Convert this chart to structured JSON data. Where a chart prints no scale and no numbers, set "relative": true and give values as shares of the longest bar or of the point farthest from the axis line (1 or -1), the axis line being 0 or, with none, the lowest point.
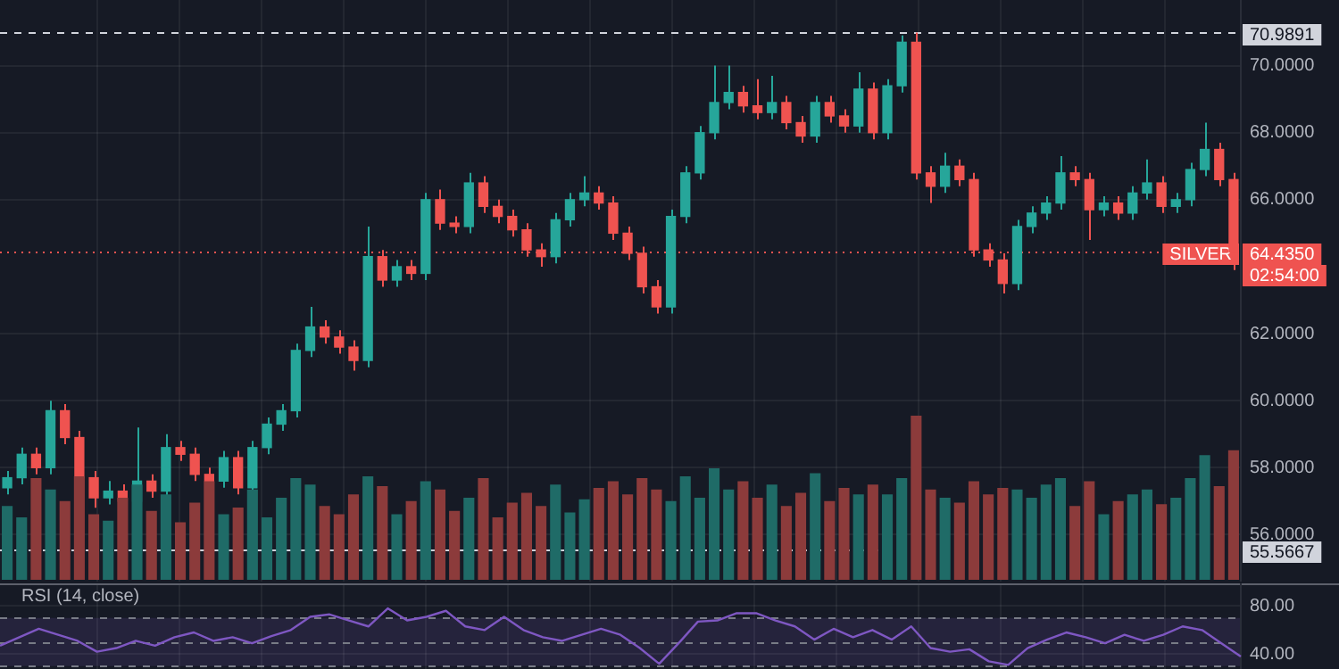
{
  "chart_data": [
    {
      "type": "candlestick",
      "categories": [
        null,
        null,
        null,
        null,
        null,
        null,
        null,
        null,
        null,
        null,
        null,
        null,
        null,
        null,
        null,
        null,
        null,
        null,
        null,
        null,
        null,
        null,
        null,
        null,
        null,
        null,
        null,
        null,
        null,
        null,
        null,
        null,
        null,
        null,
        null,
        null,
        null,
        null,
        null,
        null,
        null,
        null,
        null,
        null,
        null,
        null,
        null,
        null,
        null,
        null,
        null,
        null,
        null,
        null,
        null,
        null,
        null,
        null,
        null,
        null,
        null,
        null,
        null,
        null,
        null,
        null,
        null,
        null,
        null,
        null,
        null,
        null,
        null,
        null,
        null,
        null,
        null,
        null,
        null,
        null,
        null,
        null,
        null,
        null,
        null,
        null
      ],
      "ohlc": [
        [
          57.4,
          57.9,
          57.2,
          57.7
        ],
        [
          57.7,
          58.6,
          57.5,
          58.4
        ],
        [
          58.4,
          58.6,
          57.8,
          58.0
        ],
        [
          58.0,
          60.0,
          57.8,
          59.7
        ],
        [
          59.7,
          59.9,
          58.7,
          58.9
        ],
        [
          58.9,
          59.1,
          57.5,
          57.7
        ],
        [
          57.7,
          57.9,
          56.8,
          57.1
        ],
        [
          57.1,
          57.6,
          56.9,
          57.3
        ],
        [
          57.3,
          57.5,
          56.8,
          57.0
        ],
        [
          57.0,
          59.2,
          56.8,
          57.6
        ],
        [
          57.6,
          57.8,
          57.1,
          57.3
        ],
        [
          57.3,
          59.0,
          57.1,
          58.6
        ],
        [
          58.6,
          58.8,
          58.2,
          58.4
        ],
        [
          58.4,
          58.6,
          57.6,
          57.8
        ],
        [
          57.8,
          58.0,
          57.4,
          57.6
        ],
        [
          57.6,
          58.5,
          57.4,
          58.3
        ],
        [
          58.3,
          58.5,
          57.2,
          57.4
        ],
        [
          57.4,
          58.8,
          57.2,
          58.6
        ],
        [
          58.6,
          59.5,
          58.4,
          59.3
        ],
        [
          59.3,
          59.9,
          59.1,
          59.7
        ],
        [
          59.7,
          61.7,
          59.5,
          61.5
        ],
        [
          61.5,
          62.8,
          61.3,
          62.2
        ],
        [
          62.2,
          62.4,
          61.7,
          61.9
        ],
        [
          61.9,
          62.1,
          61.4,
          61.6
        ],
        [
          61.6,
          61.8,
          60.9,
          61.2
        ],
        [
          61.2,
          65.2,
          61.0,
          64.3
        ],
        [
          64.3,
          64.5,
          63.4,
          63.6
        ],
        [
          63.6,
          64.2,
          63.4,
          64.0
        ],
        [
          64.0,
          64.2,
          63.6,
          63.8
        ],
        [
          63.8,
          66.2,
          63.6,
          66.0
        ],
        [
          66.0,
          66.3,
          65.1,
          65.3
        ],
        [
          65.3,
          65.5,
          65.0,
          65.2
        ],
        [
          65.2,
          66.8,
          65.0,
          66.5
        ],
        [
          66.5,
          66.7,
          65.6,
          65.8
        ],
        [
          65.8,
          66.0,
          65.3,
          65.5
        ],
        [
          65.5,
          65.7,
          64.9,
          65.1
        ],
        [
          65.1,
          65.3,
          64.3,
          64.5
        ],
        [
          64.5,
          64.7,
          64.0,
          64.3
        ],
        [
          64.3,
          65.6,
          64.1,
          65.4
        ],
        [
          65.4,
          66.2,
          65.2,
          66.0
        ],
        [
          66.0,
          66.7,
          65.8,
          66.2
        ],
        [
          66.2,
          66.4,
          65.7,
          65.9
        ],
        [
          65.9,
          66.1,
          64.8,
          65.0
        ],
        [
          65.0,
          65.2,
          64.2,
          64.4
        ],
        [
          64.4,
          64.6,
          63.2,
          63.4
        ],
        [
          63.4,
          63.6,
          62.6,
          62.8
        ],
        [
          62.8,
          65.7,
          62.6,
          65.5
        ],
        [
          65.5,
          67.0,
          65.3,
          66.8
        ],
        [
          66.8,
          68.2,
          66.6,
          68.0
        ],
        [
          68.0,
          70.0,
          67.8,
          68.9
        ],
        [
          68.9,
          70.0,
          68.7,
          69.2
        ],
        [
          69.2,
          69.4,
          68.6,
          68.8
        ],
        [
          68.8,
          69.6,
          68.4,
          68.6
        ],
        [
          68.6,
          69.7,
          68.4,
          68.9
        ],
        [
          68.9,
          69.1,
          68.1,
          68.3
        ],
        [
          68.3,
          68.5,
          67.7,
          67.9
        ],
        [
          67.9,
          69.1,
          67.7,
          68.9
        ],
        [
          68.9,
          69.1,
          68.3,
          68.5
        ],
        [
          68.5,
          68.7,
          68.0,
          68.2
        ],
        [
          68.2,
          69.8,
          68.0,
          69.3
        ],
        [
          69.3,
          69.5,
          67.8,
          68.0
        ],
        [
          68.0,
          69.6,
          67.8,
          69.4
        ],
        [
          69.4,
          70.9,
          69.2,
          70.7
        ],
        [
          70.7,
          70.9891,
          66.6,
          66.8
        ],
        [
          66.8,
          67.0,
          65.9,
          66.4
        ],
        [
          66.4,
          67.4,
          66.2,
          67.0
        ],
        [
          67.0,
          67.2,
          66.4,
          66.6
        ],
        [
          66.6,
          66.8,
          64.3,
          64.5
        ],
        [
          64.5,
          64.7,
          64.0,
          64.2
        ],
        [
          64.2,
          64.4,
          63.2,
          63.5
        ],
        [
          63.5,
          65.4,
          63.3,
          65.2
        ],
        [
          65.2,
          65.8,
          65.0,
          65.6
        ],
        [
          65.6,
          66.1,
          65.4,
          65.9
        ],
        [
          65.9,
          67.3,
          65.7,
          66.8
        ],
        [
          66.8,
          67.0,
          66.4,
          66.6
        ],
        [
          66.6,
          66.8,
          64.8,
          65.7
        ],
        [
          65.7,
          66.1,
          65.5,
          65.9
        ],
        [
          65.9,
          66.1,
          65.4,
          65.6
        ],
        [
          65.6,
          66.4,
          65.4,
          66.2
        ],
        [
          66.2,
          67.2,
          66.0,
          66.5
        ],
        [
          66.5,
          66.7,
          65.6,
          65.8
        ],
        [
          65.8,
          66.2,
          65.6,
          66.0
        ],
        [
          66.0,
          67.1,
          65.8,
          66.9
        ],
        [
          66.9,
          68.3,
          66.7,
          67.5
        ],
        [
          67.5,
          67.7,
          66.4,
          66.6
        ],
        [
          66.6,
          66.8,
          63.9,
          64.435
        ]
      ],
      "colors": [
        "#26a69a",
        "#26a69a",
        "#ef5350",
        "#26a69a",
        "#ef5350",
        "#ef5350",
        "#ef5350",
        "#26a69a",
        "#ef5350",
        "#26a69a",
        "#ef5350",
        "#26a69a",
        "#ef5350",
        "#ef5350",
        "#ef5350",
        "#26a69a",
        "#ef5350",
        "#26a69a",
        "#26a69a",
        "#26a69a",
        "#26a69a",
        "#26a69a",
        "#ef5350",
        "#ef5350",
        "#ef5350",
        "#26a69a",
        "#ef5350",
        "#26a69a",
        "#ef5350",
        "#26a69a",
        "#ef5350",
        "#ef5350",
        "#26a69a",
        "#ef5350",
        "#ef5350",
        "#ef5350",
        "#ef5350",
        "#ef5350",
        "#26a69a",
        "#26a69a",
        "#26a69a",
        "#ef5350",
        "#ef5350",
        "#ef5350",
        "#ef5350",
        "#ef5350",
        "#26a69a",
        "#26a69a",
        "#26a69a",
        "#26a69a",
        "#26a69a",
        "#ef5350",
        "#ef5350",
        "#26a69a",
        "#ef5350",
        "#ef5350",
        "#26a69a",
        "#ef5350",
        "#ef5350",
        "#26a69a",
        "#ef5350",
        "#26a69a",
        "#26a69a",
        "#ef5350",
        "#ef5350",
        "#26a69a",
        "#ef5350",
        "#ef5350",
        "#ef5350",
        "#ef5350",
        "#26a69a",
        "#26a69a",
        "#26a69a",
        "#26a69a",
        "#ef5350",
        "#ef5350",
        "#26a69a",
        "#ef5350",
        "#26a69a",
        "#26a69a",
        "#ef5350",
        "#26a69a",
        "#26a69a",
        "#26a69a",
        "#ef5350",
        "#ef5350"
      ],
      "ylim": [
        54.6,
        71.96
      ],
      "yticks": [
        {
          "value": 56,
          "label": "56.0000"
        },
        {
          "value": 58,
          "label": "58.0000"
        },
        {
          "value": 60,
          "label": "60.0000"
        },
        {
          "value": 62,
          "label": "62.0000"
        },
        {
          "value": 66,
          "label": "66.0000"
        },
        {
          "value": 68,
          "label": "68.0000"
        },
        {
          "value": 70,
          "label": "70.0000"
        }
      ],
      "ref_lines": [
        {
          "axis": "y",
          "value": 70.9891,
          "label": "70.9891",
          "color": "#d1d4dc",
          "line_style": "dashed"
        },
        {
          "axis": "y",
          "value": 55.5667,
          "label": "55.5667",
          "color": "#d1d4dc",
          "line_style": "dashed"
        },
        {
          "axis": "y",
          "value": 64.435,
          "label": "64.4350",
          "color": "#ef5350",
          "line_style": "dotted"
        }
      ],
      "annotations": [
        "SILVER",
        "02:54:00"
      ],
      "grid": true,
      "tick_labels": "y"
    },
    {
      "type": "bar",
      "relative": true,
      "categories": [
        null,
        null,
        null,
        null,
        null,
        null,
        null,
        null,
        null,
        null,
        null,
        null,
        null,
        null,
        null,
        null,
        null,
        null,
        null,
        null,
        null,
        null,
        null,
        null,
        null,
        null,
        null,
        null,
        null,
        null,
        null,
        null,
        null,
        null,
        null,
        null,
        null,
        null,
        null,
        null,
        null,
        null,
        null,
        null,
        null,
        null,
        null,
        null,
        null,
        null,
        null,
        null,
        null,
        null,
        null,
        null,
        null,
        null,
        null,
        null,
        null,
        null,
        null,
        null,
        null,
        null,
        null,
        null,
        null,
        null,
        null,
        null,
        null,
        null,
        null,
        null,
        null,
        null,
        null,
        null,
        null,
        null,
        null,
        null,
        null,
        null
      ],
      "values": [
        0.45,
        0.38,
        0.62,
        0.55,
        0.48,
        0.63,
        0.4,
        0.36,
        0.5,
        0.58,
        0.42,
        0.52,
        0.35,
        0.47,
        0.6,
        0.4,
        0.44,
        0.55,
        0.38,
        0.5,
        0.62,
        0.58,
        0.45,
        0.4,
        0.52,
        0.63,
        0.57,
        0.4,
        0.48,
        0.6,
        0.55,
        0.42,
        0.5,
        0.62,
        0.38,
        0.47,
        0.53,
        0.45,
        0.58,
        0.41,
        0.49,
        0.56,
        0.6,
        0.52,
        0.62,
        0.55,
        0.48,
        0.63,
        0.5,
        0.68,
        0.55,
        0.6,
        0.5,
        0.58,
        0.45,
        0.53,
        0.65,
        0.48,
        0.56,
        0.52,
        0.58,
        0.52,
        0.62,
        1,
        0.55,
        0.5,
        0.47,
        0.6,
        0.52,
        0.56,
        0.55,
        0.5,
        0.58,
        0.62,
        0.45,
        0.6,
        0.4,
        0.48,
        0.52,
        0.55,
        0.46,
        0.5,
        0.62,
        0.76,
        0.57,
        0.79
      ],
      "colors": [
        "#1f6b67",
        "#1f6b67",
        "#8c3b3b",
        "#1f6b67",
        "#8c3b3b",
        "#8c3b3b",
        "#8c3b3b",
        "#1f6b67",
        "#8c3b3b",
        "#1f6b67",
        "#8c3b3b",
        "#1f6b67",
        "#8c3b3b",
        "#8c3b3b",
        "#8c3b3b",
        "#1f6b67",
        "#8c3b3b",
        "#1f6b67",
        "#1f6b67",
        "#1f6b67",
        "#1f6b67",
        "#1f6b67",
        "#8c3b3b",
        "#8c3b3b",
        "#8c3b3b",
        "#1f6b67",
        "#8c3b3b",
        "#1f6b67",
        "#8c3b3b",
        "#1f6b67",
        "#8c3b3b",
        "#8c3b3b",
        "#1f6b67",
        "#8c3b3b",
        "#8c3b3b",
        "#8c3b3b",
        "#8c3b3b",
        "#8c3b3b",
        "#1f6b67",
        "#1f6b67",
        "#1f6b67",
        "#8c3b3b",
        "#8c3b3b",
        "#8c3b3b",
        "#8c3b3b",
        "#8c3b3b",
        "#1f6b67",
        "#1f6b67",
        "#1f6b67",
        "#1f6b67",
        "#1f6b67",
        "#8c3b3b",
        "#8c3b3b",
        "#1f6b67",
        "#8c3b3b",
        "#8c3b3b",
        "#1f6b67",
        "#8c3b3b",
        "#8c3b3b",
        "#1f6b67",
        "#8c3b3b",
        "#1f6b67",
        "#1f6b67",
        "#8c3b3b",
        "#8c3b3b",
        "#1f6b67",
        "#8c3b3b",
        "#8c3b3b",
        "#8c3b3b",
        "#8c3b3b",
        "#1f6b67",
        "#1f6b67",
        "#1f6b67",
        "#1f6b67",
        "#8c3b3b",
        "#8c3b3b",
        "#1f6b67",
        "#8c3b3b",
        "#1f6b67",
        "#1f6b67",
        "#8c3b3b",
        "#1f6b67",
        "#1f6b67",
        "#1f6b67",
        "#8c3b3b",
        "#8c3b3b"
      ]
    },
    {
      "type": "line",
      "title": "RSI (14, close)",
      "categories": [
        null,
        null,
        null,
        null,
        null,
        null,
        null,
        null,
        null,
        null,
        null,
        null,
        null,
        null,
        null,
        null,
        null,
        null,
        null,
        null,
        null,
        null,
        null,
        null,
        null,
        null,
        null,
        null,
        null,
        null,
        null,
        null,
        null,
        null,
        null,
        null,
        null,
        null,
        null,
        null,
        null,
        null,
        null,
        null,
        null,
        null,
        null,
        null,
        null,
        null,
        null,
        null,
        null,
        null,
        null,
        null,
        null,
        null,
        null,
        null,
        null,
        null,
        null,
        null,
        null
      ],
      "series": [
        {
          "color": "#7e57c2",
          "values": [
            47,
            54,
            61,
            56,
            51,
            42,
            45,
            51,
            47,
            54,
            58,
            51,
            54,
            49,
            55,
            60,
            71,
            73,
            68,
            63,
            78,
            68,
            71,
            76,
            63,
            60,
            71,
            60,
            54,
            51,
            56,
            61,
            56,
            45,
            32,
            49,
            67,
            68,
            74,
            74,
            68,
            63,
            52,
            61,
            54,
            60,
            52,
            63,
            45,
            42,
            44,
            34,
            31,
            45,
            52,
            58,
            54,
            49,
            56,
            51,
            56,
            63,
            60,
            49,
            38
          ]
        }
      ],
      "ylim": [
        27.6,
        98.8
      ],
      "yticks": [
        {
          "value": 40,
          "label": "40.00"
        },
        {
          "value": 80,
          "label": "80.00"
        }
      ],
      "ref_lines": [
        {
          "axis": "y",
          "value": 70,
          "color": "#787b86",
          "line_style": "dashed"
        },
        {
          "axis": "y",
          "value": 50,
          "color": "#787b86",
          "line_style": "dashed"
        },
        {
          "axis": "y",
          "value": 30,
          "color": "#787b86",
          "line_style": "dashed"
        }
      ],
      "bands": [
        {
          "axis": "y",
          "from": 30,
          "to": 70,
          "color": "#7e57c2"
        }
      ],
      "grid": true,
      "tick_labels": "y"
    }
  ]
}
